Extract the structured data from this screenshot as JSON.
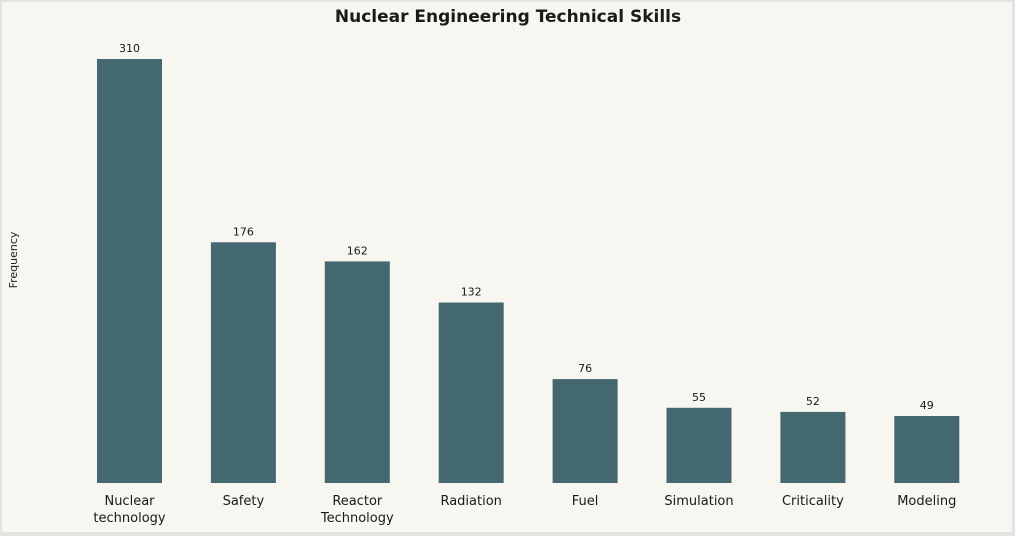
{
  "chart_data": {
    "type": "bar",
    "title": "Nuclear Engineering Technical Skills",
    "xlabel": "",
    "ylabel": "Frequency",
    "categories": [
      [
        "Nuclear",
        "technology"
      ],
      [
        "Safety"
      ],
      [
        "Reactor",
        "Technology"
      ],
      [
        "Radiation"
      ],
      [
        "Fuel"
      ],
      [
        "Simulation"
      ],
      [
        "Criticality"
      ],
      [
        "Modeling"
      ]
    ],
    "values": [
      310,
      176,
      162,
      132,
      76,
      55,
      52,
      49
    ],
    "ylim": [
      0,
      310
    ],
    "grid": false,
    "legend": "none",
    "bar_color": "#44686f",
    "background_color": "#f8f6f1"
  }
}
